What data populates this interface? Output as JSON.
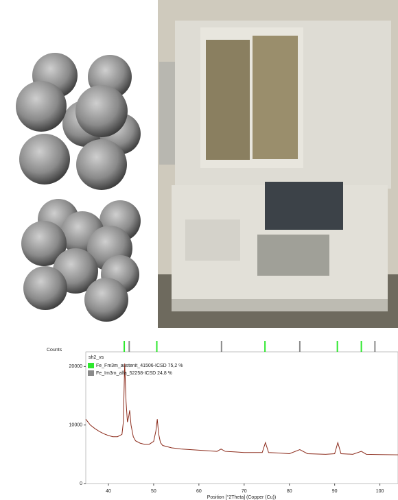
{
  "chart_data": {
    "type": "line",
    "y_label": "Counts",
    "x_label": "Position [°2Theta] (Copper (Cu))",
    "xlim": [
      35,
      104
    ],
    "ylim": [
      0,
      22500
    ],
    "xticks": [
      40,
      50,
      60,
      70,
      80,
      90,
      100
    ],
    "yticks": [
      0,
      10000,
      20000
    ],
    "series": [
      {
        "name": "sh2_vs",
        "color": "#8b2a1a",
        "x": [
          35,
          36,
          37,
          38,
          39,
          40,
          41,
          42,
          43,
          43.3,
          43.6,
          43.9,
          44.2,
          44.5,
          44.7,
          45,
          45.5,
          46,
          47,
          48,
          49,
          50,
          50.5,
          50.8,
          51.1,
          51.5,
          52,
          54,
          56,
          58,
          60,
          62,
          64,
          64.9,
          65.8,
          68,
          70,
          72,
          74,
          74.7,
          75.4,
          78,
          80,
          82.3,
          84,
          88,
          90,
          90.7,
          91.4,
          94,
          95.9,
          97,
          100,
          104
        ],
        "values": [
          11000,
          10000,
          9400,
          8900,
          8500,
          8200,
          8000,
          8000,
          8400,
          10500,
          20500,
          14000,
          10500,
          11500,
          12500,
          10000,
          8000,
          7300,
          6900,
          6700,
          6700,
          7200,
          9000,
          11000,
          8500,
          7000,
          6500,
          6100,
          5900,
          5800,
          5700,
          5600,
          5500,
          5900,
          5500,
          5400,
          5300,
          5300,
          5300,
          7000,
          5300,
          5200,
          5100,
          5800,
          5100,
          5000,
          5100,
          7000,
          5100,
          5000,
          5500,
          5000,
          4950,
          4900
        ]
      }
    ],
    "phases": [
      {
        "name": "Fe_Fm3m_austenit_41506-ICSD 75,2 %",
        "color": "#2ee82e",
        "positions": [
          43.5,
          50.7,
          74.6,
          90.6,
          95.9
        ]
      },
      {
        "name": "Fe_Im3m_alfa_52258-ICSD 24,8 %",
        "color": "#8a8a8a",
        "positions": [
          44.6,
          65.0,
          82.3,
          98.9
        ]
      }
    ]
  }
}
